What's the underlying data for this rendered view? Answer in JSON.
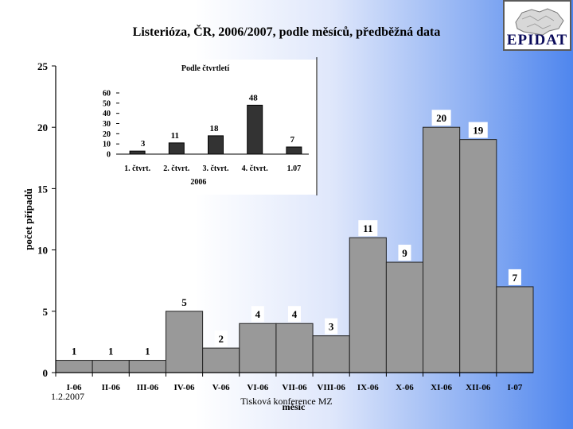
{
  "logo": {
    "text": "EPIDAT"
  },
  "footer": {
    "date": "1.2.2007",
    "conference": "Tisková konference MZ"
  },
  "chart_data": [
    {
      "type": "bar",
      "title": "Listerióza, ČR, 2006/2007, podle měsíců, předběžná data",
      "xlabel": "měsíc",
      "ylabel": "počet případů",
      "ylim": [
        0,
        25
      ],
      "yticks": [
        0,
        5,
        10,
        15,
        20,
        25
      ],
      "categories": [
        "I-06",
        "II-06",
        "III-06",
        "IV-06",
        "V-06",
        "VI-06",
        "VII-06",
        "VIII-06",
        "IX-06",
        "X-06",
        "XI-06",
        "XII-06",
        "I-07"
      ],
      "values": [
        1,
        1,
        1,
        5,
        2,
        4,
        4,
        3,
        11,
        9,
        20,
        19,
        7
      ],
      "bar_color": "#999999"
    },
    {
      "type": "bar",
      "title": "Podle čtvrtletí",
      "categories": [
        "1. čtvrt.",
        "2. čtvrt.",
        "3. čtvrt.",
        "4. čtvrt.",
        "1.07"
      ],
      "group_label": "2006",
      "values": [
        3,
        11,
        18,
        48,
        7
      ],
      "ylim": [
        0,
        60
      ],
      "yticks": [
        0,
        10,
        20,
        30,
        40,
        50,
        60
      ],
      "bar_color": "#333333"
    }
  ]
}
